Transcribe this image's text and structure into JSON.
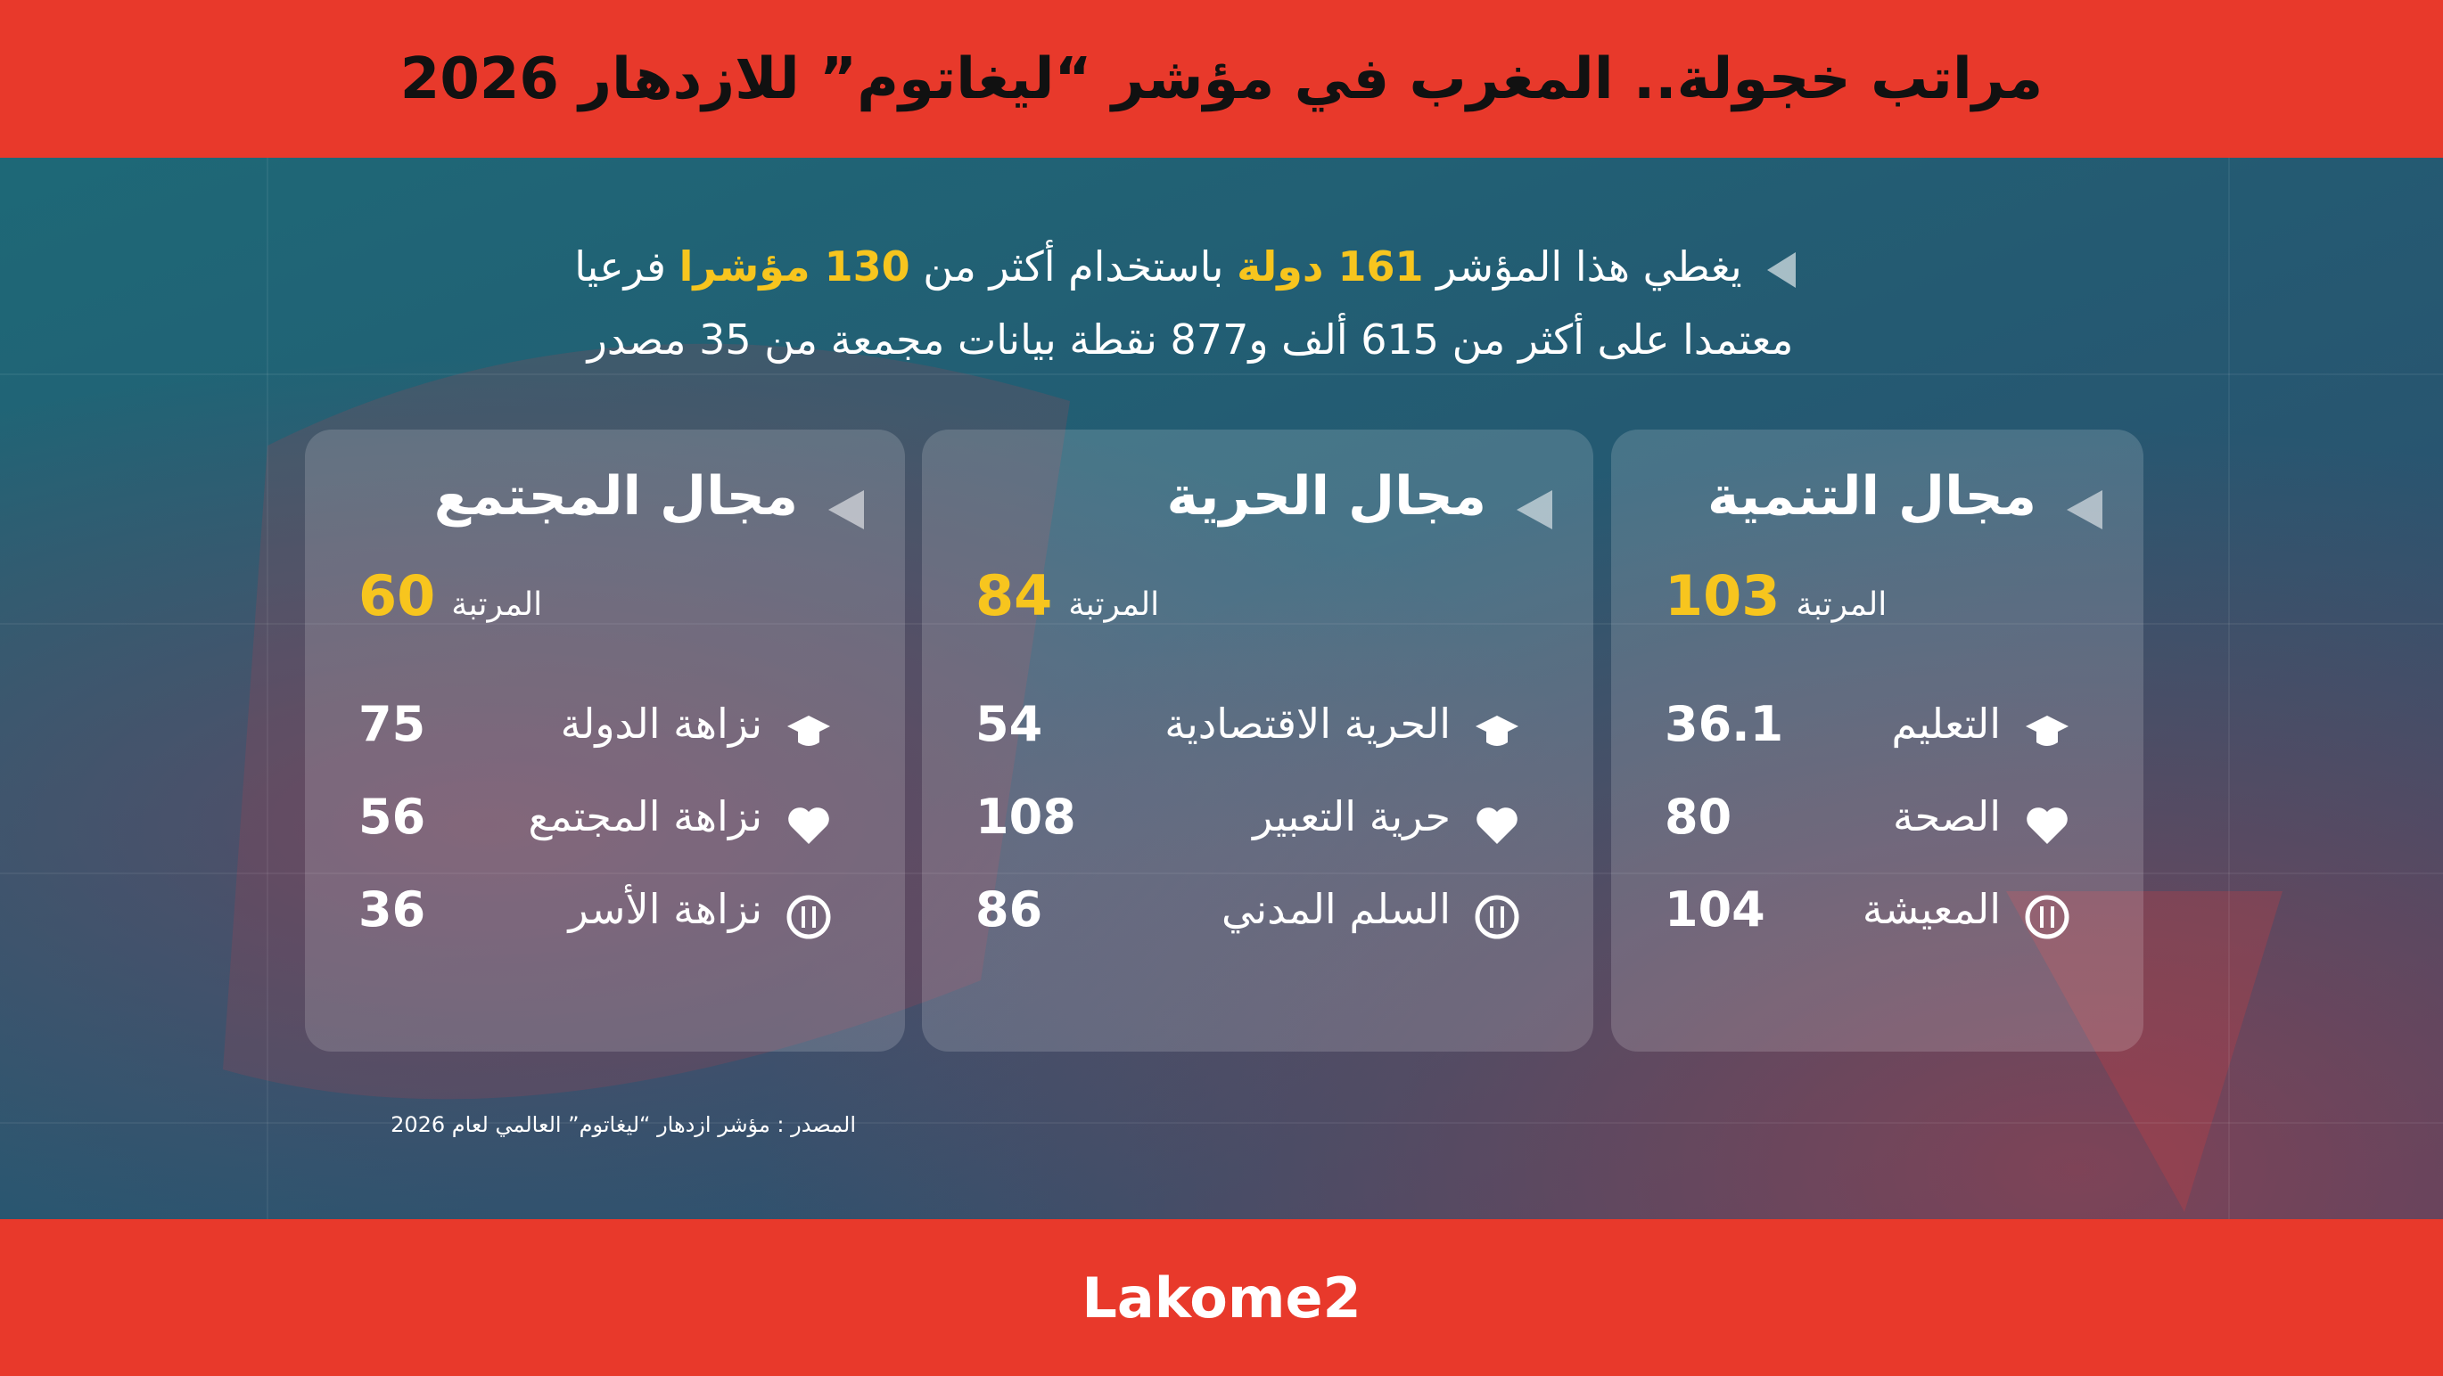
{
  "header": {
    "title": "مراتب خجولة.. المغرب في مؤشر “ليغاتوم” للازدهار 2026"
  },
  "intro": {
    "line1": [
      {
        "text": "يغطي هذا المؤشر",
        "highlight": false
      },
      {
        "text": "161 دولة",
        "highlight": true
      },
      {
        "text": "باستخدام أكثر من",
        "highlight": false
      },
      {
        "text": "130 مؤشرا",
        "highlight": true
      },
      {
        "text": "فرعيا",
        "highlight": false
      }
    ],
    "line2": "معتمدا على أكثر من 615 ألف و877 نقطة بيانات مجمعة من 35 مصدر"
  },
  "cards": [
    {
      "title": "مجال التنمية",
      "rank_label": "المرتبة",
      "rank": 103,
      "items": [
        {
          "label": "التعليم",
          "value": 36.1
        },
        {
          "label": "الصحة",
          "value": 80
        },
        {
          "label": "المعيشة",
          "value": 104
        }
      ]
    },
    {
      "title": "مجال الحرية",
      "rank_label": "المرتبة",
      "rank": 84,
      "items": [
        {
          "label": "الحرية الاقتصادية",
          "value": 54
        },
        {
          "label": "حرية التعبير",
          "value": 108
        },
        {
          "label": "السلم المدني",
          "value": 86
        }
      ]
    },
    {
      "title": "مجال المجتمع",
      "rank_label": "المرتبة",
      "rank": 60,
      "items": [
        {
          "label": "نزاهة الدولة",
          "value": 75
        },
        {
          "label": "نزاهة المجتمع",
          "value": 56
        },
        {
          "label": "نزاهة الأسر",
          "value": 36
        }
      ]
    }
  ],
  "source": "المصدر : مؤشر ازدهار “ليغاتوم” العالمي لعام 2026",
  "footer": {
    "brand": "Lakome2"
  }
}
